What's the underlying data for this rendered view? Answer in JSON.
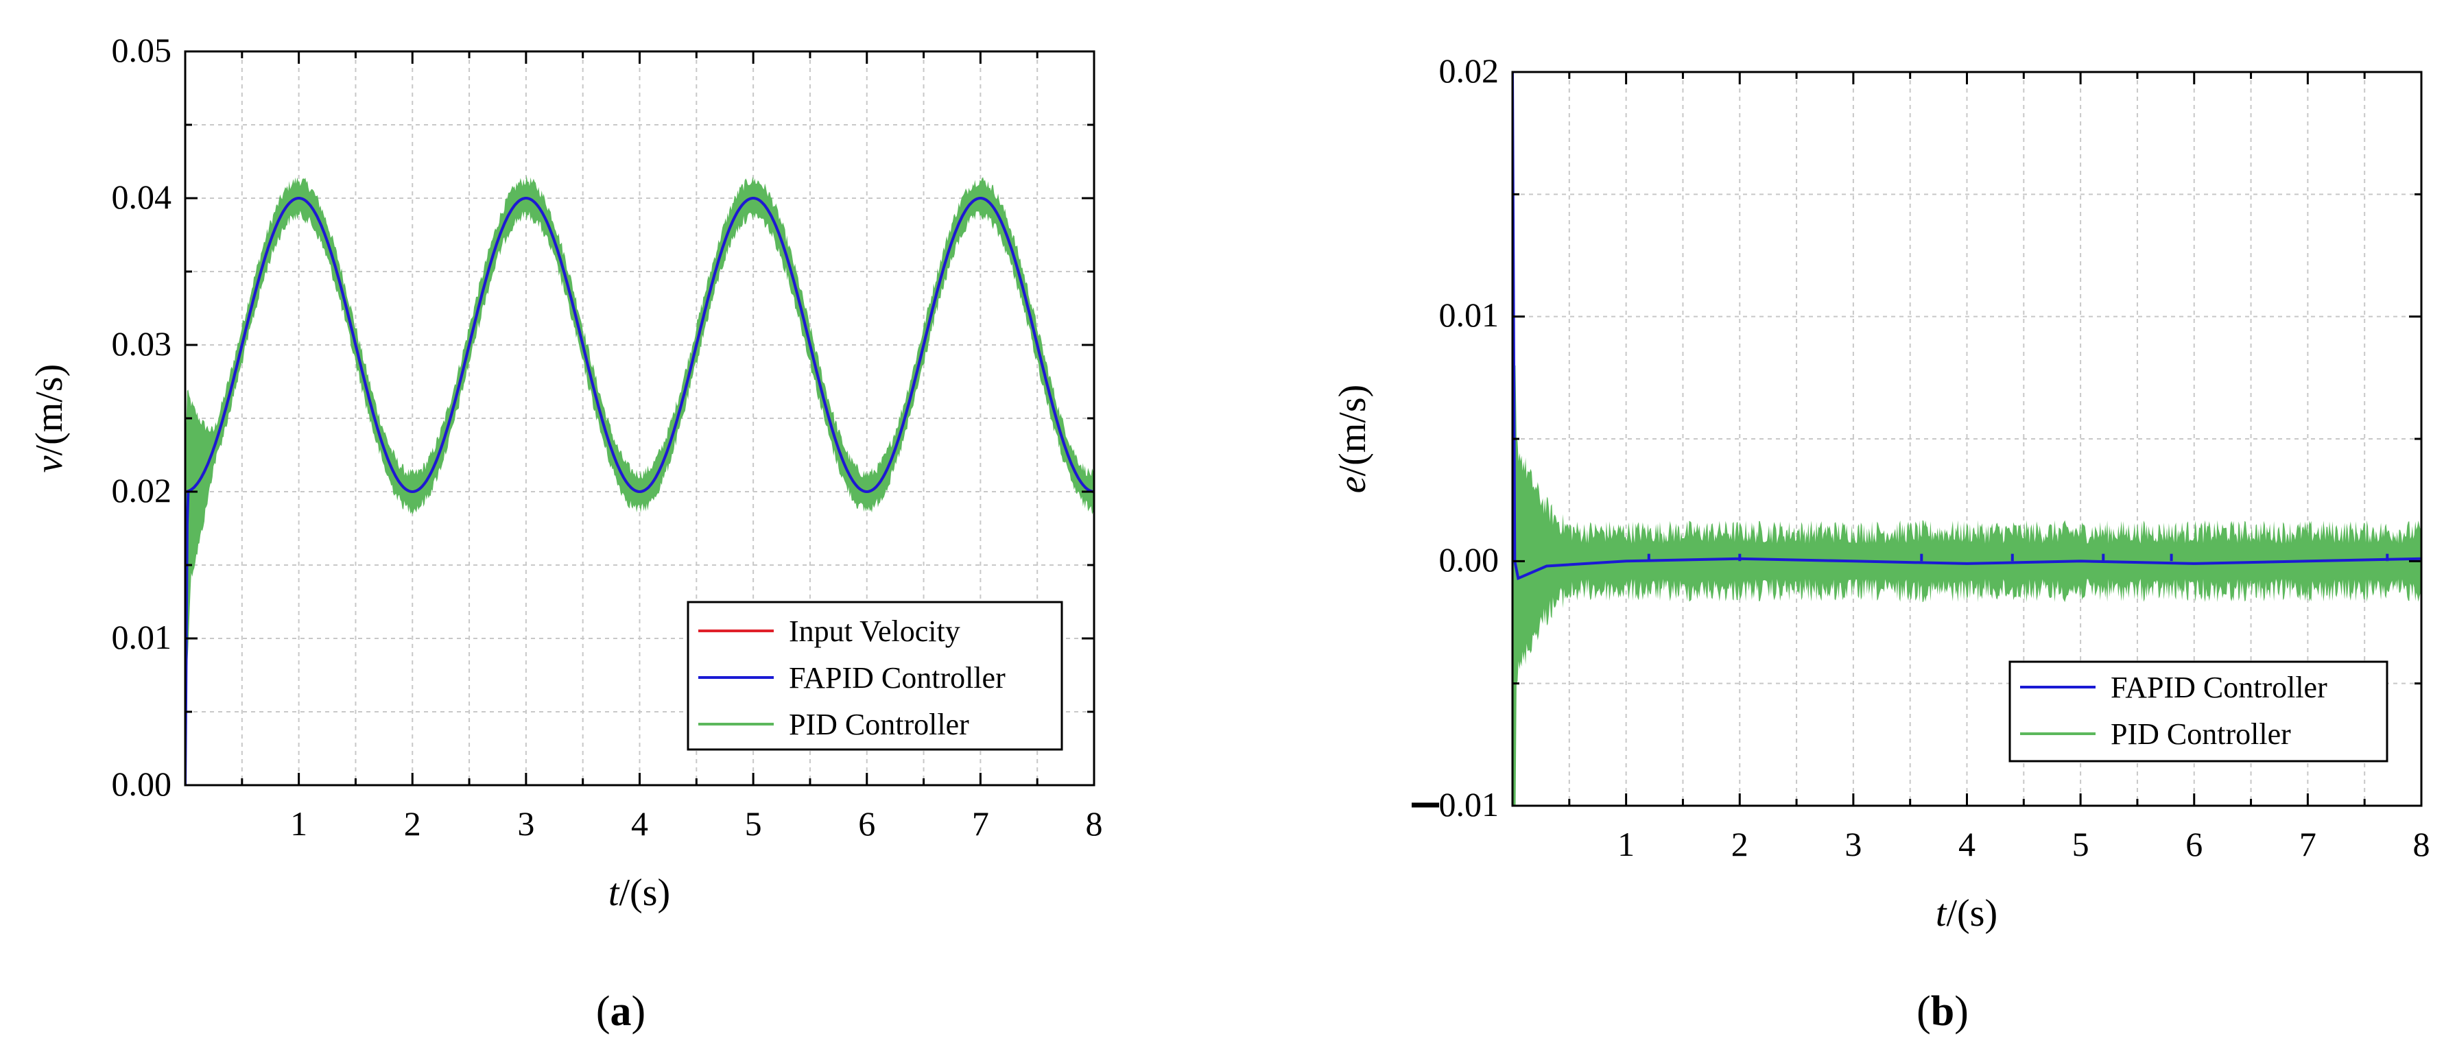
{
  "panels": [
    {
      "id": "a",
      "label_open": "(",
      "label_letter": "a",
      "label_close": ")",
      "xlabel_var": "t",
      "xlabel_unit": "/(s)",
      "ylabel_var": "v",
      "ylabel_unit": "/(m/s)",
      "x_ticks": [
        "1",
        "2",
        "3",
        "4",
        "5",
        "6",
        "7",
        "8"
      ],
      "y_ticks": [
        "0.00",
        "0.01",
        "0.02",
        "0.03",
        "0.04",
        "0.05"
      ],
      "legend": [
        "Input Velocity",
        "FAPID Controller",
        "PID Controller"
      ]
    },
    {
      "id": "b",
      "label_open": "(",
      "label_letter": "b",
      "label_close": ")",
      "xlabel_var": "t",
      "xlabel_unit": "/(s)",
      "ylabel_var": "e",
      "ylabel_unit": "/(m/s)",
      "x_ticks": [
        "1",
        "2",
        "3",
        "4",
        "5",
        "6",
        "7",
        "8"
      ],
      "y_ticks": [
        "0.00",
        "0.01",
        "0.02"
      ],
      "y_tick_neg": "0.01",
      "legend": [
        "FAPID Controller",
        "PID Controller"
      ]
    }
  ],
  "chart_data": [
    {
      "type": "line",
      "title": "",
      "xlabel": "t/(s)",
      "ylabel": "v/(m/s)",
      "xlim": [
        0,
        8
      ],
      "ylim": [
        0,
        0.05
      ],
      "grid": true,
      "legend_position": "bottom-right",
      "series": [
        {
          "name": "Input Velocity",
          "color": "#e0202a",
          "description": "0.03 - 0.01*cos(pi*t), period 2 s",
          "x": [
            0,
            1,
            2,
            3,
            4,
            5,
            6,
            7,
            8
          ],
          "values": [
            0.02,
            0.04,
            0.02,
            0.04,
            0.02,
            0.04,
            0.02,
            0.04,
            0.02
          ]
        },
        {
          "name": "FAPID Controller",
          "color": "#1a1ad4",
          "x": [
            0,
            1,
            2,
            3,
            4,
            5,
            6,
            7,
            8
          ],
          "values": [
            0.0,
            0.04,
            0.02,
            0.04,
            0.02,
            0.04,
            0.02,
            0.04,
            0.02
          ]
        },
        {
          "name": "PID Controller",
          "color": "#5cb85c",
          "noise_band": 0.0012,
          "x": [
            0,
            1,
            2,
            3,
            4,
            5,
            6,
            7,
            8
          ],
          "values": [
            0.0,
            0.04,
            0.02,
            0.04,
            0.02,
            0.04,
            0.02,
            0.04,
            0.02
          ]
        }
      ]
    },
    {
      "type": "line",
      "title": "",
      "xlabel": "t/(s)",
      "ylabel": "e/(m/s)",
      "xlim": [
        0,
        8
      ],
      "ylim": [
        -0.01,
        0.02
      ],
      "grid": true,
      "legend_position": "bottom-right",
      "series": [
        {
          "name": "FAPID Controller",
          "color": "#1a1ad4",
          "x": [
            0,
            0.02,
            0.05,
            0.3,
            1,
            2,
            3,
            4,
            5,
            6,
            7,
            8
          ],
          "values": [
            0.02,
            0.0,
            -0.0007,
            -0.0002,
            0.0,
            0.0001,
            0.0,
            -0.0001,
            0.0,
            -0.0001,
            0.0,
            0.0001
          ]
        },
        {
          "name": "PID Controller",
          "color": "#5cb85c",
          "noise_band": 0.0012,
          "x": [
            0,
            0.05,
            0.3,
            1,
            2,
            3,
            4,
            5,
            6,
            7,
            8
          ],
          "values": [
            -0.01,
            0.008,
            0.0,
            0.0,
            0.0,
            0.0,
            0.0,
            0.0,
            0.0,
            0.0,
            0.0
          ]
        }
      ]
    }
  ]
}
